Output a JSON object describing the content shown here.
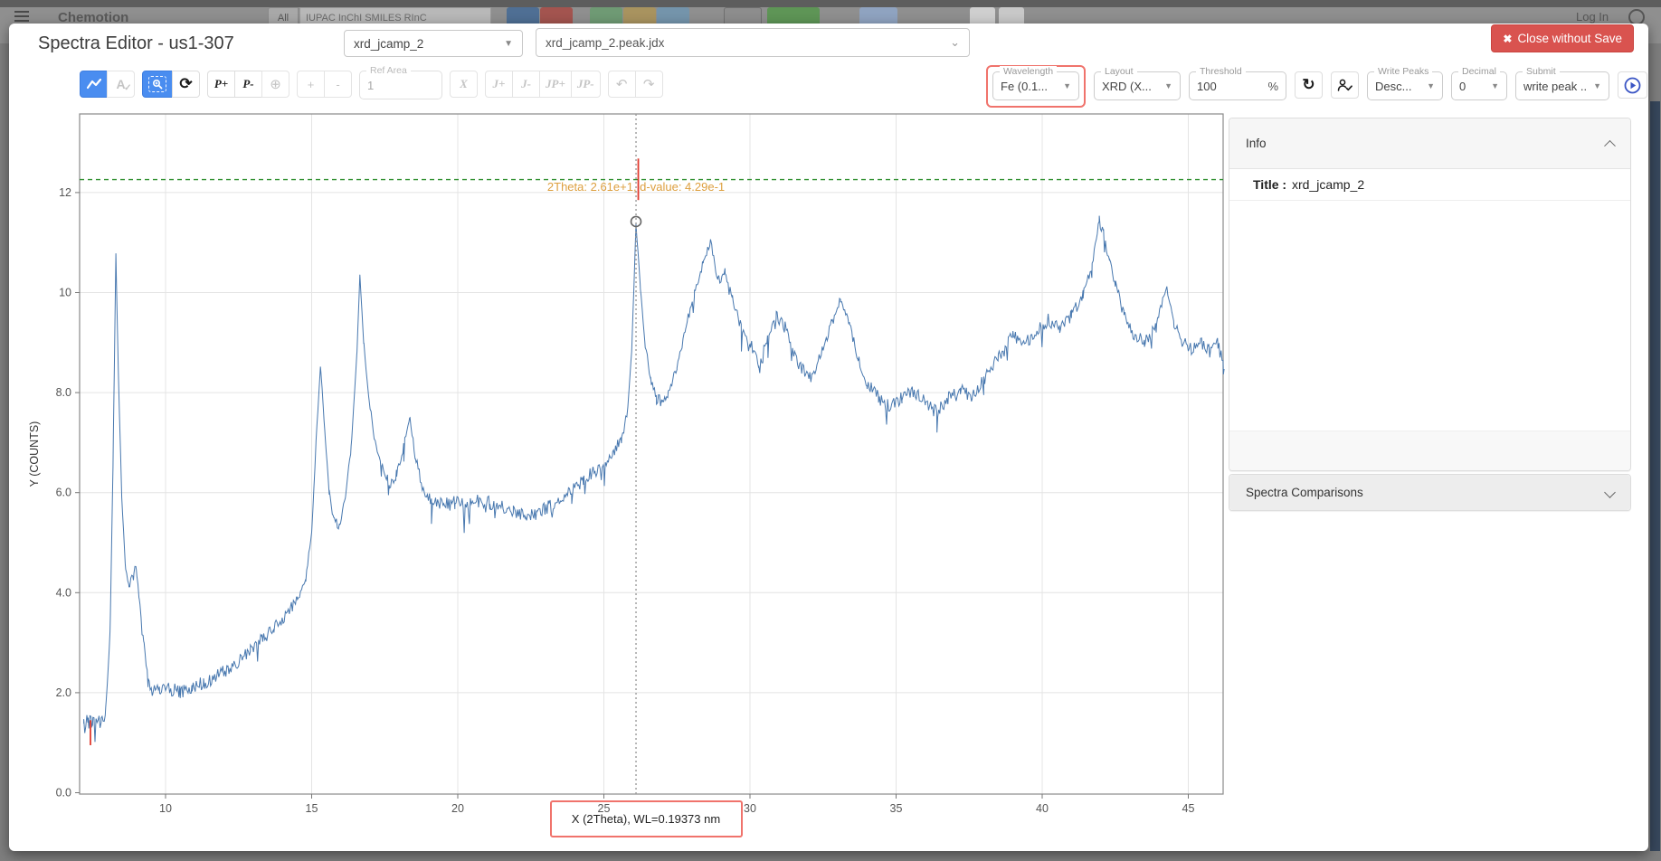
{
  "background": {
    "brand": "Chemotion",
    "all_label": "All",
    "search_text": "IUPAC InChI SMILES RInC",
    "login_label": "Log In"
  },
  "modal": {
    "title": "Spectra Editor - us1-307",
    "dataset_select_value": "xrd_jcamp_2",
    "file_select_value": "xrd_jcamp_2.peak.jdx",
    "close_icon": "✖",
    "close_label": "Close without Save"
  },
  "toolbar": {
    "a_check_label": "A",
    "check_glyph": "✓",
    "zoom_reset_icon": "⟳",
    "p_plus": "P+",
    "p_minus": "P-",
    "pin_plus_icon": "⊕",
    "plus": "+",
    "minus": "-",
    "ref_area_label": "Ref Area",
    "ref_area_value": "1",
    "x_label": "X",
    "j_plus": "J+",
    "j_minus": "J-",
    "jp_plus": "JP+",
    "jp_minus": "JP-",
    "undo_icon": "↶",
    "redo_icon": "↷",
    "wavelength_label": "Wavelength",
    "wavelength_value": "Fe (0.1...",
    "layout_label": "Layout",
    "layout_value": "XRD (X...",
    "threshold_label": "Threshold",
    "threshold_value": "100",
    "threshold_unit": "%",
    "refresh_icon": "↻",
    "write_peaks_label": "Write Peaks",
    "write_peaks_value": "Desc...",
    "decimal_label": "Decimal",
    "decimal_value": "0",
    "submit_label": "Submit",
    "submit_value": "write peak ..."
  },
  "panel": {
    "info_header": "Info",
    "title_label": "Title :",
    "title_value": "xrd_jcamp_2",
    "comparisons_header": "Spectra Comparisons"
  },
  "colors": {
    "accent-blue": "#4a8df0",
    "danger-red": "#d9534f",
    "annotation-red": "#f0736c",
    "trace-blue": "#4878af",
    "threshold-green": "#2f8f2f",
    "marker-orange": "#dd9f3e",
    "marker-red": "#e0392e",
    "navy-strip": "#37475c"
  },
  "chart_data": {
    "type": "line",
    "series_name": "xrd_jcamp_2",
    "xlabel": "X (2Theta), WL=0.19373 nm",
    "ylabel": "Y (COUNTS)",
    "xlim": [
      7.2,
      46.25
    ],
    "ylim": [
      0,
      13.6
    ],
    "x_ticks": [
      10,
      15,
      20,
      25,
      30,
      35,
      40,
      45
    ],
    "y_ticks": [
      {
        "v": 0,
        "label": "0.0"
      },
      {
        "v": 2,
        "label": "2.0"
      },
      {
        "v": 4,
        "label": "4.0"
      },
      {
        "v": 6,
        "label": "6.0"
      },
      {
        "v": 8,
        "label": "8.0"
      },
      {
        "v": 10,
        "label": "10"
      },
      {
        "v": 12,
        "label": "12"
      }
    ],
    "grid": true,
    "threshold_line_y": 12.26,
    "peak_marker": {
      "x": 26.1,
      "label": "2Theta: 2.61e+1; d-value: 4.29e-1",
      "circle_y": 11.42,
      "red_line_y": [
        11.85,
        12.68
      ]
    },
    "ref_marker": {
      "x": 7.43,
      "y": [
        0.95,
        1.45
      ]
    },
    "noise_amp": 0.15,
    "seed": 42,
    "anchors": [
      [
        7.2,
        1.45
      ],
      [
        7.35,
        1.4
      ],
      [
        7.5,
        1.42
      ],
      [
        7.65,
        1.38
      ],
      [
        7.8,
        1.42
      ],
      [
        7.95,
        1.6
      ],
      [
        8.1,
        3.2
      ],
      [
        8.2,
        6.5
      ],
      [
        8.3,
        10.78
      ],
      [
        8.38,
        8.5
      ],
      [
        8.5,
        5.9
      ],
      [
        8.62,
        4.6
      ],
      [
        8.75,
        4.1
      ],
      [
        8.9,
        4.35
      ],
      [
        9.0,
        4.5
      ],
      [
        9.1,
        3.9
      ],
      [
        9.25,
        3.0
      ],
      [
        9.4,
        2.3
      ],
      [
        9.55,
        2.0
      ],
      [
        9.8,
        2.05
      ],
      [
        10.1,
        2.1
      ],
      [
        10.5,
        2.0
      ],
      [
        10.9,
        2.1
      ],
      [
        11.3,
        2.2
      ],
      [
        11.7,
        2.3
      ],
      [
        12.1,
        2.45
      ],
      [
        12.5,
        2.6
      ],
      [
        12.9,
        2.85
      ],
      [
        13.3,
        3.05
      ],
      [
        13.7,
        3.3
      ],
      [
        14.1,
        3.55
      ],
      [
        14.5,
        3.85
      ],
      [
        14.8,
        4.3
      ],
      [
        15.0,
        5.2
      ],
      [
        15.15,
        7.0
      ],
      [
        15.3,
        8.55
      ],
      [
        15.45,
        7.2
      ],
      [
        15.6,
        6.0
      ],
      [
        15.75,
        5.45
      ],
      [
        15.95,
        5.35
      ],
      [
        16.15,
        5.9
      ],
      [
        16.35,
        6.9
      ],
      [
        16.55,
        8.8
      ],
      [
        16.65,
        10.35
      ],
      [
        16.78,
        9.0
      ],
      [
        16.95,
        7.9
      ],
      [
        17.15,
        7.1
      ],
      [
        17.4,
        6.5
      ],
      [
        17.65,
        6.2
      ],
      [
        17.9,
        6.35
      ],
      [
        18.15,
        6.9
      ],
      [
        18.35,
        7.55
      ],
      [
        18.55,
        6.7
      ],
      [
        18.8,
        6.1
      ],
      [
        19.1,
        5.85
      ],
      [
        19.5,
        5.75
      ],
      [
        19.9,
        5.8
      ],
      [
        20.3,
        5.75
      ],
      [
        20.7,
        5.85
      ],
      [
        21.1,
        5.8
      ],
      [
        21.5,
        5.7
      ],
      [
        21.9,
        5.6
      ],
      [
        22.3,
        5.55
      ],
      [
        22.7,
        5.6
      ],
      [
        23.1,
        5.7
      ],
      [
        23.5,
        5.85
      ],
      [
        23.9,
        6.05
      ],
      [
        24.3,
        6.25
      ],
      [
        24.7,
        6.45
      ],
      [
        25.0,
        6.55
      ],
      [
        25.3,
        6.8
      ],
      [
        25.6,
        7.05
      ],
      [
        25.8,
        7.6
      ],
      [
        25.95,
        8.8
      ],
      [
        26.1,
        11.37
      ],
      [
        26.25,
        10.1
      ],
      [
        26.4,
        9.0
      ],
      [
        26.6,
        8.3
      ],
      [
        26.8,
        7.85
      ],
      [
        27.0,
        7.8
      ],
      [
        27.2,
        7.95
      ],
      [
        27.5,
        8.5
      ],
      [
        27.8,
        9.3
      ],
      [
        28.1,
        10.0
      ],
      [
        28.4,
        10.6
      ],
      [
        28.65,
        11.05
      ],
      [
        28.9,
        10.2
      ],
      [
        29.15,
        10.45
      ],
      [
        29.4,
        9.9
      ],
      [
        29.7,
        9.3
      ],
      [
        30.0,
        9.0
      ],
      [
        30.3,
        8.6
      ],
      [
        30.6,
        9.1
      ],
      [
        30.9,
        9.55
      ],
      [
        31.2,
        9.3
      ],
      [
        31.5,
        8.8
      ],
      [
        31.8,
        8.45
      ],
      [
        32.1,
        8.25
      ],
      [
        32.45,
        8.8
      ],
      [
        32.8,
        9.4
      ],
      [
        33.1,
        9.85
      ],
      [
        33.4,
        9.35
      ],
      [
        33.7,
        8.7
      ],
      [
        34.0,
        8.2
      ],
      [
        34.4,
        7.9
      ],
      [
        34.8,
        7.7
      ],
      [
        35.2,
        7.9
      ],
      [
        35.6,
        8.05
      ],
      [
        36.0,
        7.8
      ],
      [
        36.4,
        7.6
      ],
      [
        36.8,
        7.9
      ],
      [
        37.2,
        8.05
      ],
      [
        37.6,
        7.9
      ],
      [
        38.0,
        8.25
      ],
      [
        38.5,
        8.7
      ],
      [
        39.0,
        9.15
      ],
      [
        39.4,
        8.95
      ],
      [
        39.8,
        9.25
      ],
      [
        40.2,
        9.45
      ],
      [
        40.6,
        9.25
      ],
      [
        41.0,
        9.55
      ],
      [
        41.4,
        9.95
      ],
      [
        41.7,
        10.5
      ],
      [
        41.95,
        11.45
      ],
      [
        42.1,
        11.2
      ],
      [
        42.3,
        10.6
      ],
      [
        42.5,
        10.2
      ],
      [
        42.8,
        9.6
      ],
      [
        43.1,
        9.2
      ],
      [
        43.5,
        9.0
      ],
      [
        43.9,
        9.3
      ],
      [
        44.25,
        10.15
      ],
      [
        44.5,
        9.4
      ],
      [
        44.8,
        9.0
      ],
      [
        45.1,
        8.85
      ],
      [
        45.4,
        9.05
      ],
      [
        45.7,
        8.85
      ],
      [
        46.0,
        9.0
      ],
      [
        46.2,
        8.6
      ]
    ]
  }
}
